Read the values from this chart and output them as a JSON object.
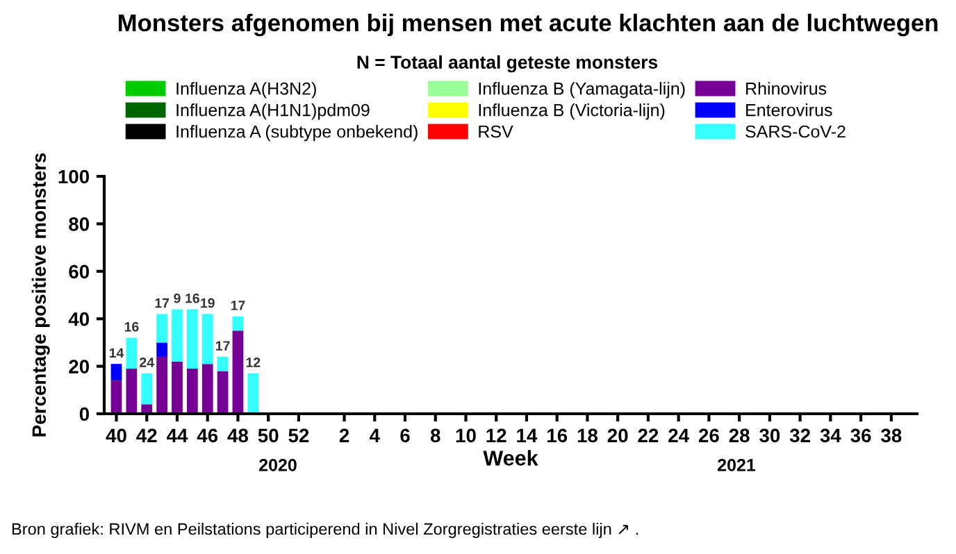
{
  "chart_data": {
    "type": "bar",
    "stacked": true,
    "title": "Monsters afgenomen bij mensen met acute klachten aan de luchtwegen",
    "subtitle": "N = Totaal aantal geteste monsters",
    "xlabel": "Week",
    "ylabel": "Percentage positieve monsters",
    "categories": [
      "40",
      null,
      "42",
      null,
      "44",
      null,
      "46",
      null,
      "48",
      null,
      "50",
      null,
      "52",
      null,
      null,
      "2",
      null,
      "4",
      null,
      "6",
      null,
      "8",
      null,
      "10",
      null,
      "12",
      null,
      "14",
      null,
      "16",
      null,
      "18",
      null,
      "20",
      null,
      "22",
      null,
      "24",
      null,
      "26",
      null,
      "28",
      null,
      "30",
      null,
      "32",
      null,
      "34",
      null,
      "36",
      null,
      "38",
      null
    ],
    "series": [
      {
        "name": "Influenza A(H3N2)",
        "color": "#00cc00",
        "values": [
          0,
          0,
          0,
          0,
          0,
          0,
          0,
          0,
          0,
          0,
          null,
          null,
          null,
          null,
          null,
          null,
          null,
          null,
          null,
          null,
          null,
          null,
          null,
          null,
          null,
          null,
          null,
          null,
          null,
          null,
          null,
          null,
          null,
          null,
          null,
          null,
          null,
          null,
          null,
          null,
          null,
          null,
          null,
          null,
          null,
          null,
          null,
          null,
          null,
          null,
          null,
          null,
          null
        ]
      },
      {
        "name": "Influenza A(H1N1)pdm09",
        "color": "#006600",
        "values": [
          0,
          0,
          0,
          0,
          0,
          0,
          0,
          0,
          0,
          0,
          null,
          null,
          null,
          null,
          null,
          null,
          null,
          null,
          null,
          null,
          null,
          null,
          null,
          null,
          null,
          null,
          null,
          null,
          null,
          null,
          null,
          null,
          null,
          null,
          null,
          null,
          null,
          null,
          null,
          null,
          null,
          null,
          null,
          null,
          null,
          null,
          null,
          null,
          null,
          null,
          null,
          null,
          null
        ]
      },
      {
        "name": "Influenza A (subtype onbekend)",
        "color": "#000000",
        "values": [
          0,
          0,
          0,
          0,
          0,
          0,
          0,
          0,
          0,
          0,
          null,
          null,
          null,
          null,
          null,
          null,
          null,
          null,
          null,
          null,
          null,
          null,
          null,
          null,
          null,
          null,
          null,
          null,
          null,
          null,
          null,
          null,
          null,
          null,
          null,
          null,
          null,
          null,
          null,
          null,
          null,
          null,
          null,
          null,
          null,
          null,
          null,
          null,
          null,
          null,
          null,
          null,
          null
        ]
      },
      {
        "name": "Influenza B (Yamagata-lijn)",
        "color": "#99ff99",
        "values": [
          0,
          0,
          0,
          0,
          0,
          0,
          0,
          0,
          0,
          0,
          null,
          null,
          null,
          null,
          null,
          null,
          null,
          null,
          null,
          null,
          null,
          null,
          null,
          null,
          null,
          null,
          null,
          null,
          null,
          null,
          null,
          null,
          null,
          null,
          null,
          null,
          null,
          null,
          null,
          null,
          null,
          null,
          null,
          null,
          null,
          null,
          null,
          null,
          null,
          null,
          null,
          null,
          null
        ]
      },
      {
        "name": "Influenza B (Victoria-lijn)",
        "color": "#ffff00",
        "values": [
          0,
          0,
          0,
          0,
          0,
          0,
          0,
          0,
          0,
          0,
          null,
          null,
          null,
          null,
          null,
          null,
          null,
          null,
          null,
          null,
          null,
          null,
          null,
          null,
          null,
          null,
          null,
          null,
          null,
          null,
          null,
          null,
          null,
          null,
          null,
          null,
          null,
          null,
          null,
          null,
          null,
          null,
          null,
          null,
          null,
          null,
          null,
          null,
          null,
          null,
          null,
          null,
          null
        ]
      },
      {
        "name": "RSV",
        "color": "#ff0000",
        "values": [
          0,
          0,
          0,
          0,
          0,
          0,
          0,
          0,
          0,
          0,
          null,
          null,
          null,
          null,
          null,
          null,
          null,
          null,
          null,
          null,
          null,
          null,
          null,
          null,
          null,
          null,
          null,
          null,
          null,
          null,
          null,
          null,
          null,
          null,
          null,
          null,
          null,
          null,
          null,
          null,
          null,
          null,
          null,
          null,
          null,
          null,
          null,
          null,
          null,
          null,
          null,
          null,
          null
        ]
      },
      {
        "name": "Rhinovirus",
        "color": "#760096",
        "values": [
          14,
          19,
          4,
          24,
          22,
          19,
          21,
          18,
          35,
          0,
          null,
          null,
          null,
          null,
          null,
          null,
          null,
          null,
          null,
          null,
          null,
          null,
          null,
          null,
          null,
          null,
          null,
          null,
          null,
          null,
          null,
          null,
          null,
          null,
          null,
          null,
          null,
          null,
          null,
          null,
          null,
          null,
          null,
          null,
          null,
          null,
          null,
          null,
          null,
          null,
          null,
          null,
          null
        ]
      },
      {
        "name": "Enterovirus",
        "color": "#0000ff",
        "values": [
          7,
          0,
          0,
          6,
          0,
          0,
          0,
          0,
          0,
          0,
          null,
          null,
          null,
          null,
          null,
          null,
          null,
          null,
          null,
          null,
          null,
          null,
          null,
          null,
          null,
          null,
          null,
          null,
          null,
          null,
          null,
          null,
          null,
          null,
          null,
          null,
          null,
          null,
          null,
          null,
          null,
          null,
          null,
          null,
          null,
          null,
          null,
          null,
          null,
          null,
          null,
          null,
          null
        ]
      },
      {
        "name": "SARS-CoV-2",
        "color": "#33ffff",
        "values": [
          0,
          13,
          13,
          12,
          22,
          25,
          21,
          6,
          6,
          17,
          null,
          null,
          null,
          null,
          null,
          null,
          null,
          null,
          null,
          null,
          null,
          null,
          null,
          null,
          null,
          null,
          null,
          null,
          null,
          null,
          null,
          null,
          null,
          null,
          null,
          null,
          null,
          null,
          null,
          null,
          null,
          null,
          null,
          null,
          null,
          null,
          null,
          null,
          null,
          null,
          null,
          null,
          null
        ]
      }
    ],
    "ylim": [
      0,
      100
    ],
    "yticks": [
      0,
      20,
      40,
      60,
      80,
      100
    ],
    "grid": false,
    "legend": "top",
    "annotations": [
      "2020",
      "2021",
      "Bron grafiek: RIVM en Peilstations participerend in Nivel Zorgregistraties eerste lijn ↗ .",
      "14",
      "16",
      "24",
      "17",
      "9",
      "16",
      "19",
      "17",
      "17",
      "12"
    ]
  }
}
